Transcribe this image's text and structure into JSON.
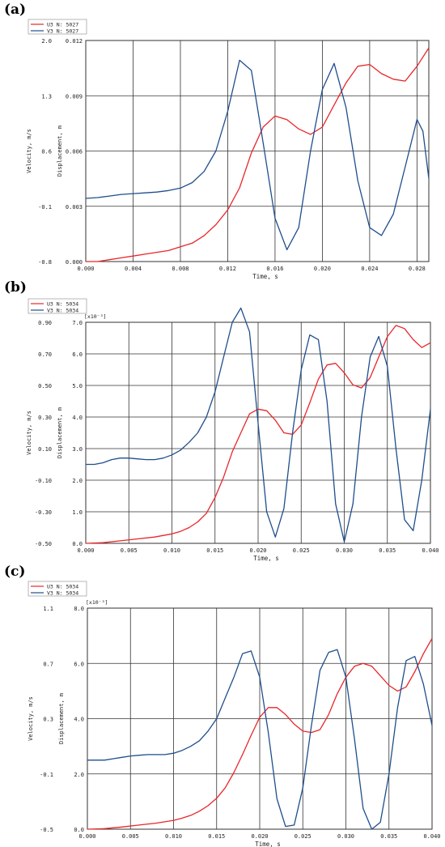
{
  "chart_data": [
    {
      "panel_label": "(a)",
      "type": "line",
      "legend": [
        {
          "label": "U3 N: 5027",
          "color": "#e8262a"
        },
        {
          "label": "V3 N: 5027",
          "color": "#1f4e8c"
        }
      ],
      "legend_position": "top-left",
      "xlabel": "Time, s",
      "ylabel_left": "Velocity, m/s",
      "ylabel_right": "Displacement, m",
      "exponent_label": "",
      "grid": true,
      "xlim": [
        0,
        0.029
      ],
      "xticks": [
        0.0,
        0.004,
        0.008,
        0.012,
        0.016,
        0.02,
        0.024,
        0.028
      ],
      "xtick_labels": [
        "0.000",
        "0.004",
        "0.008",
        "0.012",
        "0.016",
        "0.020",
        "0.024",
        "0.028"
      ],
      "ylim_left": [
        -0.8,
        2.0
      ],
      "yticks_left": [
        -0.8,
        -0.1,
        0.6,
        1.3,
        2.0
      ],
      "ytick_labels_left": [
        "-0.8",
        "-0.1",
        "0.6",
        "1.3",
        "2.0"
      ],
      "ylim_right": [
        0.0,
        0.012
      ],
      "yticks_right": [
        0.0,
        0.003,
        0.006,
        0.009,
        0.012
      ],
      "ytick_labels_right": [
        "0.000",
        "0.003",
        "0.006",
        "0.009",
        "0.012"
      ],
      "series": [
        {
          "name": "U3 N: 5027",
          "axis": "right",
          "color": "#e8262a",
          "x": [
            0,
            0.001,
            0.002,
            0.003,
            0.004,
            0.005,
            0.006,
            0.007,
            0.008,
            0.009,
            0.01,
            0.011,
            0.012,
            0.013,
            0.014,
            0.015,
            0.016,
            0.017,
            0.018,
            0.019,
            0.02,
            0.021,
            0.022,
            0.023,
            0.024,
            0.025,
            0.026,
            0.027,
            0.028,
            0.029
          ],
          "y": [
            0.0,
            0.0,
            0.0001,
            0.0002,
            0.0003,
            0.0004,
            0.0005,
            0.0006,
            0.0008,
            0.001,
            0.0014,
            0.002,
            0.0028,
            0.004,
            0.0059,
            0.0073,
            0.0079,
            0.0077,
            0.0072,
            0.0069,
            0.0073,
            0.0085,
            0.0097,
            0.0106,
            0.0107,
            0.0102,
            0.0099,
            0.0098,
            0.0106,
            0.0116
          ]
        },
        {
          "name": "V3 N: 5027",
          "axis": "left",
          "color": "#1f4e8c",
          "x": [
            0,
            0.001,
            0.002,
            0.003,
            0.004,
            0.005,
            0.006,
            0.007,
            0.008,
            0.009,
            0.01,
            0.011,
            0.012,
            0.013,
            0.014,
            0.015,
            0.016,
            0.017,
            0.018,
            0.019,
            0.02,
            0.021,
            0.022,
            0.023,
            0.024,
            0.025,
            0.026,
            0.027,
            0.028,
            0.0285,
            0.029
          ],
          "y": [
            0.0,
            0.01,
            0.03,
            0.05,
            0.06,
            0.07,
            0.08,
            0.1,
            0.13,
            0.2,
            0.34,
            0.6,
            1.1,
            1.75,
            1.62,
            0.7,
            -0.25,
            -0.65,
            -0.37,
            0.6,
            1.38,
            1.71,
            1.15,
            0.22,
            -0.37,
            -0.47,
            -0.2,
            0.4,
            1.0,
            0.85,
            0.25
          ]
        }
      ]
    },
    {
      "panel_label": "(b)",
      "type": "line",
      "legend": [
        {
          "label": "U3 N: 5034",
          "color": "#e8262a"
        },
        {
          "label": "V3 N: 5034",
          "color": "#1f4e8c"
        }
      ],
      "legend_position": "top-left",
      "xlabel": "Time, s",
      "ylabel_left": "Velocity, m/s",
      "ylabel_right": "Displacement, m",
      "exponent_label": "[x10⁻³]",
      "grid": true,
      "xlim": [
        0,
        0.04
      ],
      "xticks": [
        0.0,
        0.005,
        0.01,
        0.015,
        0.02,
        0.025,
        0.03,
        0.035,
        0.04
      ],
      "xtick_labels": [
        "0.000",
        "0.005",
        "0.010",
        "0.015",
        "0.020",
        "0.025",
        "0.030",
        "0.035",
        "0.040"
      ],
      "ylim_left": [
        -0.5,
        0.9
      ],
      "yticks_left": [
        -0.5,
        -0.3,
        -0.1,
        0.1,
        0.3,
        0.5,
        0.7,
        0.9
      ],
      "ytick_labels_left": [
        "-0.50",
        "-0.30",
        "-0.10",
        "0.10",
        "0.30",
        "0.50",
        "0.70",
        "0.90"
      ],
      "ylim_right": [
        0.0,
        7.0
      ],
      "yticks_right": [
        0.0,
        1.0,
        2.0,
        3.0,
        4.0,
        5.0,
        6.0,
        7.0
      ],
      "ytick_labels_right": [
        "0.0",
        "1.0",
        "2.0",
        "3.0",
        "4.0",
        "5.0",
        "6.0",
        "7.0"
      ],
      "series": [
        {
          "name": "U3 N: 5034",
          "axis": "right",
          "color": "#e8262a",
          "x": [
            0,
            0.002,
            0.004,
            0.006,
            0.008,
            0.01,
            0.011,
            0.012,
            0.013,
            0.014,
            0.015,
            0.016,
            0.017,
            0.018,
            0.019,
            0.02,
            0.021,
            0.022,
            0.023,
            0.024,
            0.025,
            0.026,
            0.027,
            0.028,
            0.029,
            0.03,
            0.031,
            0.032,
            0.033,
            0.034,
            0.035,
            0.036,
            0.037,
            0.038,
            0.039,
            0.04
          ],
          "y": [
            0.0,
            0.02,
            0.08,
            0.14,
            0.2,
            0.3,
            0.38,
            0.5,
            0.68,
            0.95,
            1.45,
            2.1,
            2.9,
            3.5,
            4.1,
            4.25,
            4.2,
            3.9,
            3.5,
            3.45,
            3.75,
            4.45,
            5.2,
            5.65,
            5.7,
            5.4,
            5.02,
            4.92,
            5.25,
            5.9,
            6.55,
            6.9,
            6.8,
            6.45,
            6.2,
            6.35
          ]
        },
        {
          "name": "V3 N: 5034",
          "axis": "left",
          "color": "#1f4e8c",
          "x": [
            0,
            0.001,
            0.002,
            0.003,
            0.004,
            0.005,
            0.006,
            0.007,
            0.008,
            0.009,
            0.01,
            0.011,
            0.012,
            0.013,
            0.014,
            0.015,
            0.016,
            0.017,
            0.018,
            0.019,
            0.02,
            0.021,
            0.022,
            0.023,
            0.024,
            0.025,
            0.026,
            0.027,
            0.028,
            0.029,
            0.03,
            0.031,
            0.032,
            0.033,
            0.034,
            0.035,
            0.036,
            0.037,
            0.038,
            0.039,
            0.04
          ],
          "y": [
            0.0,
            0.0,
            0.01,
            0.03,
            0.04,
            0.04,
            0.035,
            0.03,
            0.03,
            0.04,
            0.06,
            0.09,
            0.14,
            0.2,
            0.3,
            0.46,
            0.68,
            0.9,
            0.99,
            0.84,
            0.26,
            -0.3,
            -0.46,
            -0.28,
            0.2,
            0.6,
            0.82,
            0.79,
            0.4,
            -0.25,
            -0.49,
            -0.25,
            0.3,
            0.68,
            0.81,
            0.62,
            0.1,
            -0.35,
            -0.42,
            -0.1,
            0.35
          ]
        }
      ]
    },
    {
      "panel_label": "(c)",
      "type": "line",
      "legend": [
        {
          "label": "U3 N: 5034",
          "color": "#e8262a"
        },
        {
          "label": "V3 N: 5034",
          "color": "#1f4e8c"
        }
      ],
      "legend_position": "top-left",
      "xlabel": "Time, s",
      "ylabel_left": "Velocity, m/s",
      "ylabel_right": "Displacement, m",
      "exponent_label": "[x10⁻³]",
      "grid": true,
      "xlim": [
        0,
        0.04
      ],
      "xticks": [
        0.0,
        0.005,
        0.01,
        0.015,
        0.02,
        0.025,
        0.03,
        0.035,
        0.04
      ],
      "xtick_labels": [
        "0.000",
        "0.005",
        "0.010",
        "0.015",
        "0.020",
        "0.025",
        "0.030",
        "0.035",
        "0.040"
      ],
      "ylim_left": [
        -0.5,
        1.1
      ],
      "yticks_left": [
        -0.5,
        -0.1,
        0.3,
        0.7,
        1.1
      ],
      "ytick_labels_left": [
        "-0.5",
        "-0.1",
        "0.3",
        "0.7",
        "1.1"
      ],
      "ylim_right": [
        0.0,
        8.0
      ],
      "yticks_right": [
        0.0,
        2.0,
        4.0,
        6.0,
        8.0
      ],
      "ytick_labels_right": [
        "0.0",
        "2.0",
        "4.0",
        "6.0",
        "8.0"
      ],
      "series": [
        {
          "name": "U3 N: 5034",
          "axis": "right",
          "color": "#e8262a",
          "x": [
            0,
            0.002,
            0.004,
            0.006,
            0.008,
            0.01,
            0.011,
            0.012,
            0.013,
            0.014,
            0.015,
            0.016,
            0.017,
            0.018,
            0.019,
            0.02,
            0.021,
            0.022,
            0.023,
            0.024,
            0.025,
            0.026,
            0.027,
            0.028,
            0.029,
            0.03,
            0.031,
            0.032,
            0.033,
            0.034,
            0.035,
            0.036,
            0.037,
            0.038,
            0.039,
            0.04
          ],
          "y": [
            0.0,
            0.02,
            0.08,
            0.15,
            0.22,
            0.32,
            0.4,
            0.5,
            0.65,
            0.85,
            1.12,
            1.5,
            2.05,
            2.7,
            3.4,
            4.05,
            4.4,
            4.4,
            4.15,
            3.8,
            3.55,
            3.5,
            3.6,
            4.15,
            4.9,
            5.5,
            5.9,
            6.0,
            5.9,
            5.55,
            5.2,
            5.0,
            5.15,
            5.7,
            6.35,
            6.9
          ]
        },
        {
          "name": "V3 N: 5034",
          "axis": "left",
          "color": "#1f4e8c",
          "x": [
            0,
            0.001,
            0.002,
            0.003,
            0.004,
            0.005,
            0.006,
            0.007,
            0.008,
            0.009,
            0.01,
            0.011,
            0.012,
            0.013,
            0.014,
            0.015,
            0.016,
            0.017,
            0.018,
            0.019,
            0.02,
            0.021,
            0.022,
            0.023,
            0.024,
            0.025,
            0.026,
            0.027,
            0.028,
            0.029,
            0.03,
            0.031,
            0.032,
            0.033,
            0.034,
            0.035,
            0.036,
            0.037,
            0.038,
            0.039,
            0.04
          ],
          "y": [
            0.0,
            0.0,
            0.0,
            0.01,
            0.02,
            0.03,
            0.035,
            0.04,
            0.04,
            0.04,
            0.05,
            0.07,
            0.1,
            0.14,
            0.21,
            0.3,
            0.45,
            0.6,
            0.77,
            0.79,
            0.6,
            0.2,
            -0.28,
            -0.48,
            -0.47,
            -0.2,
            0.25,
            0.65,
            0.78,
            0.8,
            0.6,
            0.15,
            -0.35,
            -0.5,
            -0.45,
            -0.1,
            0.38,
            0.72,
            0.75,
            0.55,
            0.25
          ]
        }
      ]
    }
  ]
}
